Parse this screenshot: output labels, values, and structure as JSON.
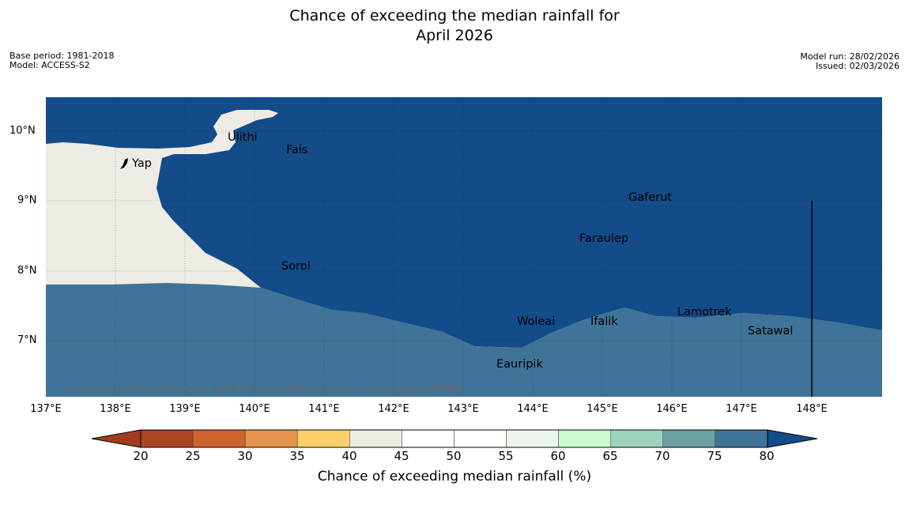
{
  "header": {
    "title_line1": "Chance of exceeding the median rainfall for",
    "title_line2": "April 2026",
    "base_period": "Base period: 1981-2018",
    "model": "Model: ACCESS-S2",
    "model_run": "Model run: 28/02/2026",
    "issued": "Issued: 02/03/2026"
  },
  "map": {
    "lat_labels": [
      "10°N",
      "9°N",
      "8°N",
      "7°N"
    ],
    "lon_labels": [
      "137°E",
      "138°E",
      "139°E",
      "140°E",
      "141°E",
      "142°E",
      "143°E",
      "144°E",
      "145°E",
      "146°E",
      "147°E",
      "148°E"
    ],
    "places": [
      "Ulithi",
      "Fais",
      "Yap",
      "Gaferut",
      "Faraulep",
      "Sorol",
      "Woleai",
      "Ifalik",
      "Lamotrek",
      "Satawal",
      "Eauripik"
    ],
    "copyright": "© Commonwealth of Australia 2026, Bureau of Meteorology, supported by COSPPac",
    "colors": {
      "band_80_plus": "#134c89",
      "band_75_80": "#3f7398",
      "band_70_75": "#6ba1a5",
      "band_65_70": "#9cd3bb",
      "band_60_65": "#cbf8cc",
      "band_55_60": "#ecf5ec",
      "band_45_55": "#ffffff",
      "band_40_45": "#eeebe5"
    }
  },
  "colorbar": {
    "ticks": [
      "20",
      "25",
      "30",
      "35",
      "40",
      "45",
      "50",
      "55",
      "60",
      "65",
      "70",
      "75",
      "80"
    ],
    "title": "Chance of exceeding median rainfall (%)",
    "colors": [
      "#a23c1e",
      "#ad4423",
      "#d06230",
      "#e3944a",
      "#fdcf6b",
      "#eeebe5",
      "#ffffff",
      "#ffffff",
      "#ecf5ec",
      "#cbf8cc",
      "#9cd3bb",
      "#6ba1a5",
      "#3f7398",
      "#134c89"
    ]
  }
}
